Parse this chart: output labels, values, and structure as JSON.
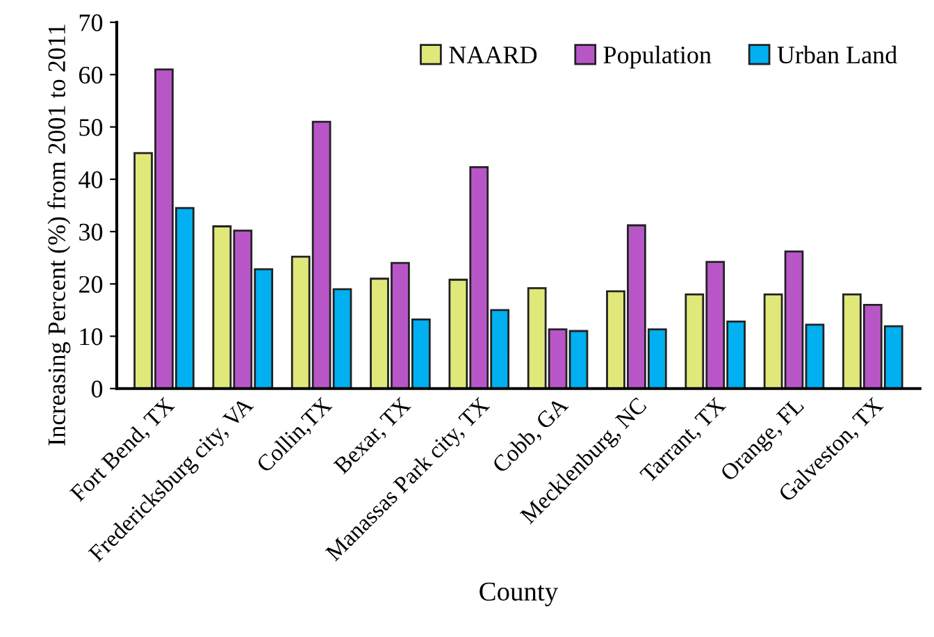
{
  "chart_data": {
    "type": "bar",
    "xlabel": "County",
    "ylabel": "Increasing Percent (%) from 2001 to 2011",
    "categories": [
      "Fort Bend, TX",
      "Fredericksburg city, VA",
      "Collin,TX",
      "Bexar, TX",
      "Manassas Park city, TX",
      "Cobb, GA",
      "Mecklenburg, NC",
      "Tarrant, TX",
      "Orange, FL",
      "Galveston, TX"
    ],
    "series": [
      {
        "name": "NAARD",
        "color": "#e1e87a",
        "values": [
          45,
          31,
          25.2,
          21,
          20.8,
          19.2,
          18.6,
          18,
          18,
          18
        ]
      },
      {
        "name": "Population",
        "color": "#b856c8",
        "values": [
          61,
          30.2,
          51,
          24,
          42.3,
          11.3,
          31.2,
          24.2,
          26.2,
          16
        ]
      },
      {
        "name": "Urban Land",
        "color": "#00b0f0",
        "values": [
          34.5,
          22.8,
          19,
          13.2,
          15,
          11,
          11.3,
          12.8,
          12.2,
          11.9
        ]
      }
    ],
    "ylim": [
      0,
      70
    ],
    "yticks": [
      0,
      10,
      20,
      30,
      40,
      50,
      60,
      70
    ],
    "grid": false,
    "legend": "top right"
  }
}
